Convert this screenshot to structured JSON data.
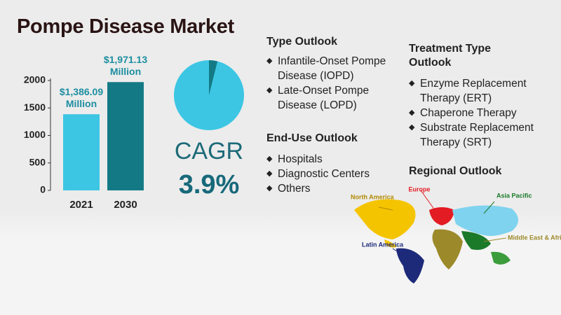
{
  "title": "Pompe Disease Market",
  "chart_data": {
    "type": "bar",
    "categories": [
      "2021",
      "2030"
    ],
    "values": [
      1386.09,
      1971.13
    ],
    "value_labels": [
      "$1,386.09 Million",
      "$1,971.13 Million"
    ],
    "colors": [
      "#3cc6e3",
      "#137a85"
    ],
    "ylim": [
      0,
      2000
    ],
    "yticks": [
      0,
      500,
      1000,
      1500,
      2000
    ]
  },
  "cagr": {
    "label": "CAGR",
    "value": 3.9,
    "value_label": "3.9%"
  },
  "type_outlook": {
    "heading": "Type Outlook",
    "items": [
      "Infantile-Onset Pompe Disease (IOPD)",
      "Late-Onset Pompe Disease (LOPD)"
    ]
  },
  "end_use_outlook": {
    "heading": "End-Use Outlook",
    "items": [
      "Hospitals",
      "Diagnostic Centers",
      "Others"
    ]
  },
  "treatment_type_outlook": {
    "heading": "Treatment Type Outlook",
    "items": [
      "Enzyme Replacement Therapy (ERT)",
      "Chaperone Therapy",
      "Substrate Replacement Therapy (SRT)"
    ]
  },
  "regional_outlook": {
    "heading": "Regional Outlook",
    "regions": [
      "North America",
      "Europe",
      "Asia Pacific",
      "Latin America",
      "Middle East & Africa"
    ]
  }
}
